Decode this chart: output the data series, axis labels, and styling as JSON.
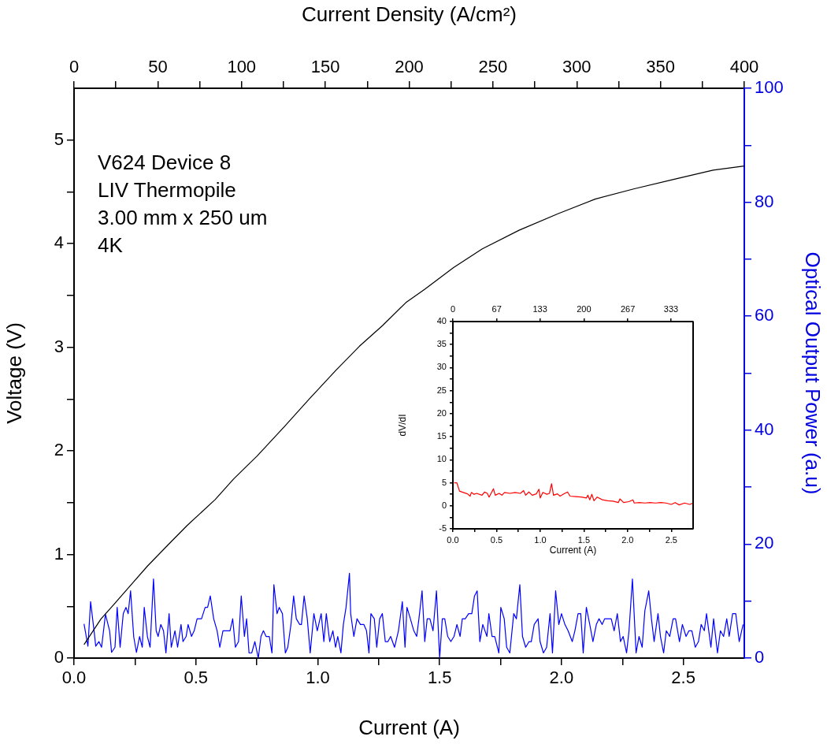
{
  "chart_data": [
    {
      "type": "line",
      "xlabel": "Current (A)",
      "x2label": "Current Density (A/cm²)",
      "ylabel": "Voltage (V)",
      "y2label": "Optical Output Power (a.u)",
      "annotations": [
        "V624 Device 8",
        "LIV Thermopile",
        "3.00 mm x 250 um",
        "4K"
      ],
      "xlim": [
        0,
        2.75
      ],
      "xticks": [
        {
          "value": 0,
          "label": "0.0"
        },
        {
          "value": 0.25,
          "label": null
        },
        {
          "value": 0.5,
          "label": "0.5"
        },
        {
          "value": 0.75,
          "label": null
        },
        {
          "value": 1,
          "label": "1.0"
        },
        {
          "value": 1.25,
          "label": null
        },
        {
          "value": 1.5,
          "label": "1.5"
        },
        {
          "value": 1.75,
          "label": null
        },
        {
          "value": 2,
          "label": "2.0"
        },
        {
          "value": 2.25,
          "label": null
        },
        {
          "value": 2.5,
          "label": "2.5"
        }
      ],
      "x2lim": [
        0,
        400
      ],
      "x2ticks": [
        0,
        {
          "value": 25,
          "label": null
        },
        50,
        {
          "value": 75,
          "label": null
        },
        100,
        {
          "value": 125,
          "label": null
        },
        150,
        {
          "value": 175,
          "label": null
        },
        200,
        {
          "value": 225,
          "label": null
        },
        250,
        {
          "value": 275,
          "label": null
        },
        300,
        {
          "value": 325,
          "label": null
        },
        350,
        {
          "value": 375,
          "label": null
        },
        400
      ],
      "ylim": [
        0,
        5.5
      ],
      "yticks": [
        0,
        {
          "value": 0.5,
          "label": null
        },
        1,
        {
          "value": 1.5,
          "label": null
        },
        2,
        {
          "value": 2.5,
          "label": null
        },
        3,
        {
          "value": 3.5,
          "label": null
        },
        4,
        {
          "value": 4.5,
          "label": null
        },
        5
      ],
      "y2lim": [
        0,
        100
      ],
      "y2ticks": [
        0,
        {
          "value": 10,
          "label": null
        },
        20,
        {
          "value": 30,
          "label": null
        },
        40,
        {
          "value": 50,
          "label": null
        },
        60,
        {
          "value": 70,
          "label": null
        },
        80,
        {
          "value": 90,
          "label": null
        },
        100
      ],
      "series": [
        {
          "color": "#000000",
          "x": [
            0.041,
            0.111,
            0.168,
            0.235,
            0.302,
            0.397,
            0.464,
            0.579,
            0.655,
            0.751,
            0.865,
            0.961,
            1.075,
            1.171,
            1.266,
            1.361,
            1.439,
            1.557,
            1.675,
            1.826,
            1.987,
            2.138,
            2.299,
            2.46,
            2.622,
            2.75
          ],
          "values": [
            0.13,
            0.38,
            0.53,
            0.71,
            0.89,
            1.12,
            1.28,
            1.53,
            1.73,
            1.95,
            2.24,
            2.49,
            2.78,
            3.01,
            3.21,
            3.43,
            3.56,
            3.77,
            3.95,
            4.13,
            4.29,
            4.43,
            4.53,
            4.62,
            4.71,
            4.75
          ]
        },
        {
          "color": "#0000ff",
          "axis": "y2",
          "x": [
            0.041,
            0.057,
            0.068,
            0.084,
            0.089,
            0.102,
            0.113,
            0.129,
            0.146,
            0.154,
            0.168,
            0.177,
            0.189,
            0.202,
            0.213,
            0.222,
            0.232,
            0.245,
            0.256,
            0.269,
            0.28,
            0.288,
            0.301,
            0.312,
            0.326,
            0.337,
            0.345,
            0.356,
            0.367,
            0.377,
            0.39,
            0.399,
            0.414,
            0.425,
            0.439,
            0.447,
            0.46,
            0.468,
            0.482,
            0.493,
            0.505,
            0.523,
            0.538,
            0.548,
            0.559,
            0.573,
            0.587,
            0.598,
            0.611,
            0.64,
            0.651,
            0.662,
            0.675,
            0.686,
            0.699,
            0.708,
            0.718,
            0.729,
            0.742,
            0.756,
            0.767,
            0.777,
            0.788,
            0.801,
            0.812,
            0.82,
            0.833,
            0.842,
            0.855,
            0.867,
            0.877,
            0.89,
            0.901,
            0.912,
            0.926,
            0.933,
            0.944,
            0.957,
            0.969,
            0.984,
            0.998,
            1.014,
            1.025,
            1.035,
            1.049,
            1.062,
            1.073,
            1.082,
            1.095,
            1.105,
            1.116,
            1.13,
            1.135,
            1.148,
            1.161,
            1.175,
            1.189,
            1.2,
            1.21,
            1.218,
            1.232,
            1.242,
            1.254,
            1.265,
            1.277,
            1.288,
            1.299,
            1.315,
            1.331,
            1.347,
            1.358,
            1.366,
            1.38,
            1.394,
            1.406,
            1.415,
            1.428,
            1.439,
            1.449,
            1.46,
            1.473,
            1.487,
            1.5,
            1.511,
            1.521,
            1.533,
            1.546,
            1.559,
            1.571,
            1.584,
            1.593,
            1.605,
            1.619,
            1.632,
            1.643,
            1.654,
            1.665,
            1.677,
            1.694,
            1.702,
            1.715,
            1.726,
            1.743,
            1.751,
            1.765,
            1.775,
            1.788,
            1.804,
            1.815,
            1.829,
            1.84,
            1.853,
            1.867,
            1.876,
            1.888,
            1.904,
            1.912,
            1.926,
            1.939,
            1.953,
            1.963,
            1.976,
            1.989,
            2.0,
            2.014,
            2.027,
            2.044,
            2.055,
            2.068,
            2.079,
            2.089,
            2.102,
            2.116,
            2.129,
            2.143,
            2.154,
            2.167,
            2.177,
            2.204,
            2.216,
            2.229,
            2.242,
            2.253,
            2.267,
            2.277,
            2.291,
            2.306,
            2.318,
            2.331,
            2.342,
            2.358,
            2.369,
            2.38,
            2.396,
            2.406,
            2.419,
            2.43,
            2.444,
            2.458,
            2.468,
            2.484,
            2.496,
            2.511,
            2.523,
            2.535,
            2.549,
            2.562,
            2.573,
            2.586,
            2.595,
            2.613,
            2.624,
            2.64,
            2.652,
            2.665,
            2.678,
            2.688,
            2.702,
            2.715,
            2.729,
            2.745
          ],
          "values": [
            6.0,
            2.1,
            9.9,
            4.1,
            2.1,
            2.9,
            1.9,
            7.7,
            4.8,
            1.0,
            1.9,
            8.9,
            1.9,
            7.8,
            8.9,
            7.8,
            11.8,
            3.7,
            1.0,
            3.8,
            1.9,
            8.9,
            3.8,
            1.9,
            13.9,
            4.8,
            3.8,
            5.9,
            4.8,
            0.9,
            7.8,
            1.9,
            4.8,
            1.9,
            5.9,
            2.9,
            3.8,
            5.9,
            3.8,
            4.8,
            6.9,
            6.9,
            8.9,
            8.9,
            10.9,
            6.9,
            4.8,
            1.9,
            4.8,
            4.8,
            6.9,
            1.9,
            2.9,
            10.9,
            3.8,
            6.9,
            0.9,
            0.9,
            2.9,
            0,
            3.8,
            4.8,
            3.8,
            3.8,
            0.9,
            12.9,
            7.8,
            8.9,
            7.8,
            0.9,
            1.9,
            5.9,
            10.9,
            6.9,
            5.9,
            5.9,
            10.9,
            6.9,
            0.9,
            7.8,
            4.8,
            7.8,
            2.9,
            7.8,
            2.9,
            4.8,
            1.9,
            3.8,
            0.9,
            5.9,
            8.9,
            14.9,
            7.8,
            3.8,
            6.9,
            5.9,
            5.9,
            4.8,
            0.9,
            7.8,
            6.9,
            1.9,
            6.9,
            7.8,
            2.9,
            2.9,
            3.8,
            1.9,
            4.8,
            9.9,
            1.9,
            8.9,
            6.9,
            4.8,
            3.8,
            6.9,
            11.8,
            2.9,
            6.9,
            6.9,
            4.8,
            11.8,
            0,
            6.9,
            6.9,
            3.8,
            2.9,
            3.8,
            5.9,
            3.8,
            6.9,
            6.9,
            7.8,
            7.8,
            10.9,
            11.8,
            2.9,
            5.9,
            3.8,
            7.8,
            3.8,
            3.8,
            0.9,
            8.9,
            6.9,
            1.9,
            0.9,
            7.8,
            6.9,
            12.9,
            3.8,
            1.9,
            2.9,
            2.9,
            5.9,
            6.9,
            2.9,
            0.9,
            1.9,
            7.8,
            0.9,
            11.8,
            5.9,
            7.8,
            5.9,
            4.8,
            2.9,
            4.8,
            7.8,
            7.8,
            0.9,
            8.9,
            5.9,
            2.9,
            5.9,
            6.9,
            5.9,
            6.9,
            6.9,
            4.8,
            7.8,
            2.9,
            3.8,
            0.9,
            4.8,
            13.9,
            0.9,
            3.8,
            1.9,
            8.3,
            11.8,
            6.9,
            2.9,
            7.8,
            3.8,
            0.9,
            4.8,
            3.8,
            6.9,
            6.9,
            2.9,
            5.9,
            3.8,
            4.8,
            4.8,
            1.9,
            2.9,
            5.9,
            4.8,
            7.8,
            1.9,
            6.9,
            0.9,
            4.8,
            3.8,
            6.9,
            3.8,
            7.8,
            7.8,
            2.9,
            5.9
          ]
        }
      ]
    },
    {
      "type": "line",
      "xlabel": "Current (A)",
      "ylabel": "dV/dI",
      "xlim": [
        0,
        2.75
      ],
      "xticks": [
        {
          "value": 0,
          "label": "0.0"
        },
        {
          "value": 0.25,
          "label": null
        },
        {
          "value": 0.5,
          "label": "0.5"
        },
        {
          "value": 0.75,
          "label": null
        },
        {
          "value": 1,
          "label": "1.0"
        },
        {
          "value": 1.25,
          "label": null
        },
        {
          "value": 1.5,
          "label": "1.5"
        },
        {
          "value": 1.75,
          "label": null
        },
        {
          "value": 2,
          "label": "2.0"
        },
        {
          "value": 2.25,
          "label": null
        },
        {
          "value": 2.5,
          "label": "2.5"
        }
      ],
      "x2lim": [
        0,
        366.7
      ],
      "x2ticks": [
        0,
        67,
        133,
        200,
        267,
        333
      ],
      "ylim": [
        -5,
        40
      ],
      "yticks": [
        -5,
        {
          "value": -2.5,
          "label": null
        },
        0,
        {
          "value": 2.5,
          "label": null
        },
        5,
        {
          "value": 7.5,
          "label": null
        },
        10,
        {
          "value": 12.5,
          "label": null
        },
        15,
        {
          "value": 17.5,
          "label": null
        },
        20,
        {
          "value": 22.5,
          "label": null
        },
        25,
        {
          "value": 27.5,
          "label": null
        },
        30,
        {
          "value": 32.5,
          "label": null
        },
        35,
        {
          "value": 37.5,
          "label": null
        },
        40
      ],
      "series": [
        {
          "color": "#ff0000",
          "x": [
            0.015,
            0.045,
            0.076,
            0.12,
            0.167,
            0.197,
            0.212,
            0.242,
            0.273,
            0.333,
            0.364,
            0.394,
            0.415,
            0.464,
            0.485,
            0.53,
            0.561,
            0.591,
            0.652,
            0.712,
            0.773,
            0.809,
            0.833,
            0.87,
            0.909,
            0.955,
            0.985,
            1.0,
            1.03,
            1.076,
            1.106,
            1.13,
            1.152,
            1.197,
            1.227,
            1.273,
            1.312,
            1.342,
            1.409,
            1.47,
            1.53,
            1.545,
            1.567,
            1.591,
            1.615,
            1.652,
            1.712,
            1.773,
            1.833,
            1.894,
            1.912,
            1.955,
            2.015,
            2.061,
            2.076,
            2.136,
            2.197,
            2.258,
            2.318,
            2.379,
            2.439,
            2.5,
            2.545,
            2.591,
            2.652,
            2.712,
            2.75
          ],
          "values": [
            5.0,
            5.0,
            3.2,
            2.9,
            2.6,
            2.1,
            2.9,
            2.5,
            2.7,
            2.3,
            3.0,
            2.7,
            1.9,
            3.7,
            2.3,
            2.7,
            2.3,
            2.9,
            2.7,
            2.9,
            2.7,
            3.3,
            2.3,
            3.0,
            2.3,
            2.6,
            3.6,
            1.7,
            2.9,
            2.5,
            2.7,
            4.8,
            2.3,
            2.6,
            2.1,
            2.6,
            3.0,
            2.1,
            2.0,
            1.9,
            1.7,
            2.3,
            1.3,
            2.5,
            1.1,
            1.9,
            1.3,
            1.1,
            1.0,
            0.7,
            1.5,
            0.7,
            0.9,
            1.3,
            0.6,
            0.7,
            0.6,
            0.7,
            0.6,
            0.7,
            0.6,
            0.3,
            0.7,
            0.2,
            0.6,
            0.3,
            0.6
          ]
        }
      ]
    }
  ]
}
